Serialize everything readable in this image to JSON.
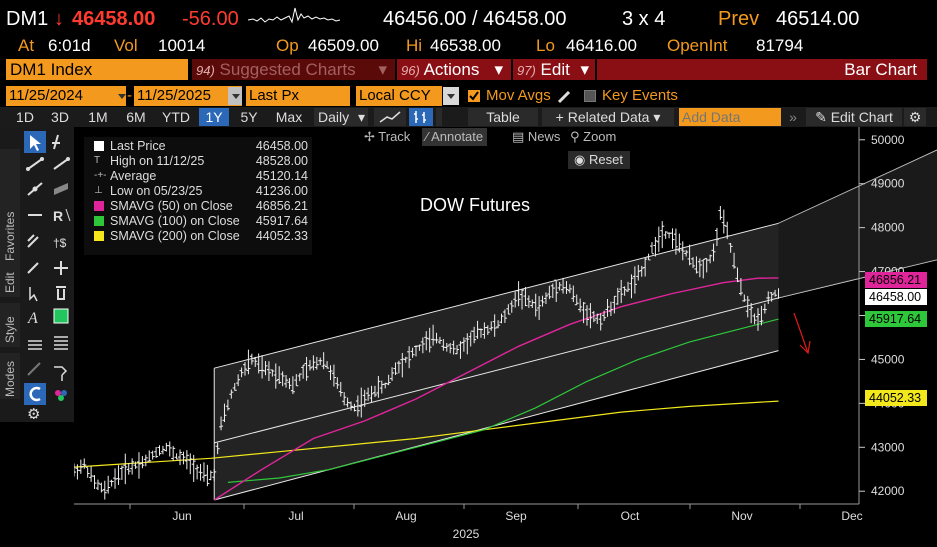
{
  "quote": {
    "ticker": "DM1",
    "arrow": "↓",
    "last": "46458.00",
    "change": "-56.00",
    "bid_ask": "46456.00 / 46458.00",
    "size": "3 x 4",
    "prev_label": "Prev",
    "prev_value": "46514.00",
    "at_label": "At",
    "at_time": "6:01d",
    "vol_label": "Vol",
    "vol_value": "10014",
    "op_label": "Op",
    "op_value": "46509.00",
    "hi_label": "Hi",
    "hi_value": "46538.00",
    "lo_label": "Lo",
    "lo_value": "46416.00",
    "oi_label": "OpenInt",
    "oi_value": "81794"
  },
  "menubar": {
    "ticker_field": "DM1 Index",
    "suggested_num": "94)",
    "suggested": "Suggested Charts",
    "actions_num": "96)",
    "actions": "Actions",
    "edit_num": "97)",
    "edit": "Edit",
    "title": "Bar Chart"
  },
  "settings": {
    "start_date": "11/25/2024",
    "end_date": "11/25/2025",
    "field": "Last Px",
    "currency": "Local CCY",
    "mov_avgs": "Mov Avgs",
    "key_events": "Key Events"
  },
  "periods": [
    "1D",
    "3D",
    "1M",
    "6M",
    "YTD",
    "1Y",
    "5Y",
    "Max"
  ],
  "selected_period": "1Y",
  "toolbar": {
    "daily": "Daily",
    "table": "Table",
    "related": "+ Related Data",
    "add_data_placeholder": "Add Data",
    "edit_chart": "Edit Chart"
  },
  "chart_toolbar": {
    "track": "Track",
    "annotate": "Annotate",
    "news": "News",
    "zoom": "Zoom",
    "reset": "Reset"
  },
  "side_tabs": {
    "favorites": "Favorites",
    "edit": "Edit",
    "style": "Style",
    "modes": "Modes"
  },
  "legend": [
    {
      "label": "Last Price",
      "value": "46458.00",
      "color": "#ffffff"
    },
    {
      "label": "High on 11/12/25",
      "value": "48528.00",
      "color": ""
    },
    {
      "label": "Average",
      "value": "45120.14",
      "color": ""
    },
    {
      "label": "Low on 05/23/25",
      "value": "41236.00",
      "color": ""
    },
    {
      "label": "SMAVG (50)  on Close",
      "value": "46856.21",
      "color": "#e0259b"
    },
    {
      "label": "SMAVG (100)  on Close",
      "value": "45917.64",
      "color": "#2fc73a"
    },
    {
      "label": "SMAVG (200)  on Close",
      "value": "44052.33",
      "color": "#f2e81c"
    }
  ],
  "chart_data": {
    "type": "bar",
    "title": "DOW Futures",
    "x_months": [
      "Jun",
      "Jul",
      "Aug",
      "Sep",
      "Oct",
      "Nov",
      "Dec"
    ],
    "year_label": "2025",
    "yticks": [
      "50000",
      "49000",
      "48000",
      "47000",
      "46000",
      "45000",
      "44000",
      "43000",
      "42000"
    ],
    "ylim": [
      41800,
      50200
    ],
    "price_labels": {
      "sma50": "46856.21",
      "last": "46458.00",
      "sma100": "45917.64",
      "sma200": "44052.33"
    },
    "price_path": [
      [
        0,
        42450
      ],
      [
        3,
        42600
      ],
      [
        6,
        42200
      ],
      [
        9,
        42000
      ],
      [
        12,
        42300
      ],
      [
        15,
        42500
      ],
      [
        18,
        42600
      ],
      [
        21,
        42700
      ],
      [
        24,
        42900
      ],
      [
        27,
        43000
      ],
      [
        30,
        42800
      ],
      [
        33,
        42700
      ],
      [
        36,
        42500
      ],
      [
        39,
        42300
      ],
      [
        41,
        42400
      ],
      [
        43,
        43500
      ],
      [
        46,
        44200
      ],
      [
        49,
        44700
      ],
      [
        52,
        45000
      ],
      [
        55,
        44800
      ],
      [
        58,
        44700
      ],
      [
        61,
        44600
      ],
      [
        64,
        44400
      ],
      [
        67,
        44700
      ],
      [
        70,
        44900
      ],
      [
        73,
        45000
      ],
      [
        76,
        44600
      ],
      [
        79,
        44100
      ],
      [
        82,
        43900
      ],
      [
        85,
        44100
      ],
      [
        88,
        44300
      ],
      [
        91,
        44400
      ],
      [
        94,
        44800
      ],
      [
        97,
        45000
      ],
      [
        100,
        45200
      ],
      [
        103,
        45400
      ],
      [
        106,
        45500
      ],
      [
        109,
        45300
      ],
      [
        112,
        45200
      ],
      [
        115,
        45400
      ],
      [
        118,
        45600
      ],
      [
        121,
        45700
      ],
      [
        124,
        45800
      ],
      [
        127,
        46100
      ],
      [
        130,
        46500
      ],
      [
        133,
        46300
      ],
      [
        136,
        46200
      ],
      [
        139,
        46500
      ],
      [
        142,
        46700
      ],
      [
        145,
        46600
      ],
      [
        148,
        46200
      ],
      [
        151,
        46000
      ],
      [
        154,
        45900
      ],
      [
        157,
        46200
      ],
      [
        160,
        46500
      ],
      [
        163,
        46700
      ],
      [
        166,
        47000
      ],
      [
        169,
        47500
      ],
      [
        172,
        47900
      ],
      [
        175,
        47800
      ],
      [
        178,
        47500
      ],
      [
        181,
        47200
      ],
      [
        184,
        47100
      ],
      [
        187,
        47400
      ],
      [
        189,
        48300
      ],
      [
        191,
        47900
      ],
      [
        193,
        47200
      ],
      [
        195,
        46600
      ],
      [
        197,
        46200
      ],
      [
        199,
        45900
      ],
      [
        201,
        46000
      ],
      [
        203,
        46400
      ],
      [
        205,
        46500
      ],
      [
        206,
        46458
      ]
    ],
    "sma50_path": [
      [
        41,
        41800
      ],
      [
        55,
        42500
      ],
      [
        70,
        43200
      ],
      [
        85,
        43600
      ],
      [
        100,
        44100
      ],
      [
        115,
        44700
      ],
      [
        130,
        45300
      ],
      [
        145,
        45800
      ],
      [
        160,
        46200
      ],
      [
        175,
        46500
      ],
      [
        190,
        46750
      ],
      [
        200,
        46850
      ],
      [
        206,
        46856
      ]
    ],
    "sma100_path": [
      [
        45,
        42200
      ],
      [
        60,
        42300
      ],
      [
        75,
        42500
      ],
      [
        90,
        42800
      ],
      [
        105,
        43100
      ],
      [
        120,
        43400
      ],
      [
        135,
        43900
      ],
      [
        150,
        44500
      ],
      [
        165,
        45000
      ],
      [
        180,
        45400
      ],
      [
        195,
        45700
      ],
      [
        206,
        45918
      ]
    ],
    "sma200_path": [
      [
        0,
        42550
      ],
      [
        20,
        42650
      ],
      [
        40,
        42750
      ],
      [
        60,
        42900
      ],
      [
        80,
        43050
      ],
      [
        100,
        43200
      ],
      [
        120,
        43400
      ],
      [
        140,
        43600
      ],
      [
        160,
        43800
      ],
      [
        180,
        43930
      ],
      [
        206,
        44052
      ]
    ],
    "channel": {
      "upper": [
        [
          41,
          44800
        ],
        [
          206,
          48100
        ]
      ],
      "mid": [
        [
          41,
          43100
        ],
        [
          206,
          46400
        ]
      ],
      "lower": [
        [
          41,
          41800
        ],
        [
          206,
          45200
        ]
      ],
      "outer_upper": [
        [
          206,
          48100
        ],
        [
          270,
          50400
        ]
      ],
      "outer_mid": [
        [
          206,
          46400
        ],
        [
          270,
          47600
        ]
      ]
    }
  }
}
